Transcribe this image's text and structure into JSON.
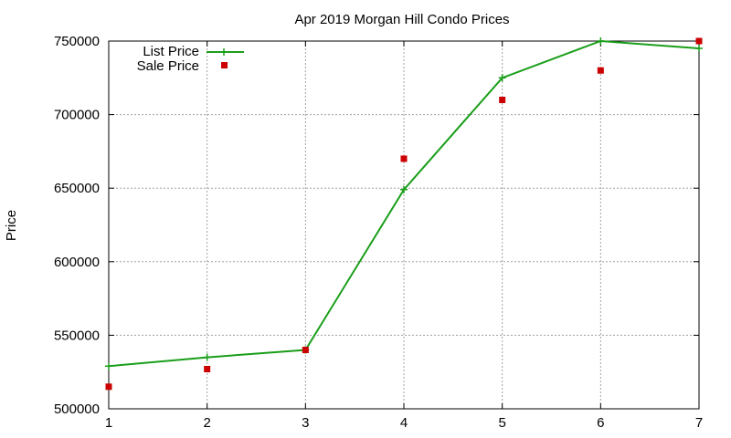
{
  "chart_data": {
    "type": "line",
    "title": "Apr 2019 Morgan Hill Condo Prices",
    "xlabel": "",
    "ylabel": "Price",
    "xlim": [
      1,
      7
    ],
    "ylim": [
      500000,
      750000
    ],
    "x_ticks": [
      "1",
      "2",
      "3",
      "4",
      "5",
      "6",
      "7"
    ],
    "y_ticks": [
      "500000",
      "550000",
      "600000",
      "650000",
      "700000",
      "750000"
    ],
    "grid": true,
    "legend_position": "top-left",
    "series": [
      {
        "name": "List Price",
        "style": "line-with-plus-markers",
        "color": "#1a9e1a",
        "x": [
          1,
          2,
          3,
          4,
          5,
          6,
          7
        ],
        "values": [
          529000,
          535000,
          540000,
          649000,
          725000,
          750000,
          745000
        ]
      },
      {
        "name": "Sale Price",
        "style": "square-markers",
        "color": "#cc0000",
        "x": [
          1,
          2,
          3,
          4,
          5,
          6,
          7
        ],
        "values": [
          515000,
          527000,
          540000,
          670000,
          710000,
          730000,
          750000
        ]
      }
    ]
  }
}
